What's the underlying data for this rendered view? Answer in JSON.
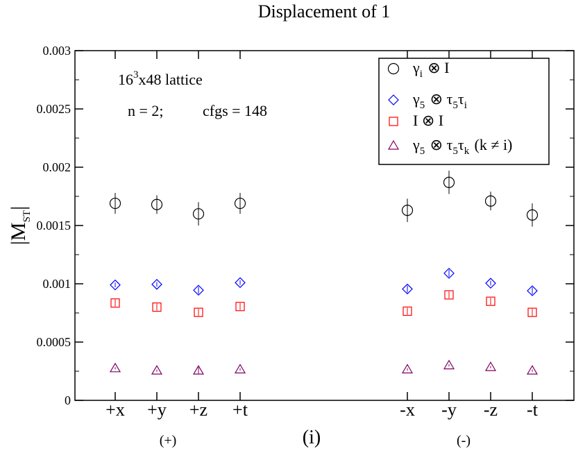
{
  "chart_data": {
    "type": "scatter",
    "title": "Displacement of 1",
    "ylabel": {
      "main": "|M",
      "sub": "ST",
      "end": "|"
    },
    "ylim": [
      0,
      0.003
    ],
    "yticks": [
      {
        "value": 0,
        "label": "0"
      },
      {
        "value": 0.0005,
        "label": "0.0005"
      },
      {
        "value": 0.001,
        "label": "0.001"
      },
      {
        "value": 0.0015,
        "label": "0.0015"
      },
      {
        "value": 0.002,
        "label": "0.002"
      },
      {
        "value": 0.0025,
        "label": "0.0025"
      },
      {
        "value": 0.003,
        "label": "0.003"
      }
    ],
    "categories": [
      "+x",
      "+y",
      "+z",
      "+t",
      "-x",
      "-y",
      "-z",
      "-t"
    ],
    "group_labels": {
      "plus": "(+)",
      "center": "(i)",
      "minus": "(-)"
    },
    "annotations": {
      "lattice": {
        "pre": "16",
        "sup": "3",
        "post": "x48 lattice"
      },
      "params": {
        "n": "n = 2;",
        "cfgs": "cfgs = 148"
      }
    },
    "series": [
      {
        "name": "γi ⊗ I",
        "marker": "circle",
        "color": "#000000",
        "values": [
          0.00169,
          0.00168,
          0.0016,
          0.00169,
          0.00163,
          0.00187,
          0.00171,
          0.00159
        ],
        "errors": [
          9e-05,
          8e-05,
          0.0001,
          9e-05,
          0.0001,
          0.0001,
          8e-05,
          0.0001
        ]
      },
      {
        "name": "γ5 ⊗ τ5τi",
        "marker": "diamond",
        "color": "#0000ff",
        "values": [
          0.00099,
          0.000995,
          0.000945,
          0.00101,
          0.000955,
          0.00109,
          0.001005,
          0.00094
        ],
        "errors": [
          2e-05,
          2e-05,
          3e-05,
          2e-05,
          3e-05,
          3e-05,
          2e-05,
          3e-05
        ]
      },
      {
        "name": "I ⊗ I",
        "marker": "square",
        "color": "#ff0000",
        "values": [
          0.000835,
          0.0008,
          0.000755,
          0.000805,
          0.000765,
          0.000905,
          0.00085,
          0.000755
        ],
        "errors": [
          3e-05,
          3e-05,
          3e-05,
          3e-05,
          3e-05,
          3e-05,
          3e-05,
          3e-05
        ]
      },
      {
        "name": "γ5 ⊗ τ5τk (k ≠ i)",
        "marker": "triangle",
        "color": "#800060",
        "values": [
          0.000275,
          0.000255,
          0.000255,
          0.000265,
          0.000265,
          0.0003,
          0.000285,
          0.000255
        ],
        "errors": [
          1e-05,
          1e-05,
          3e-05,
          1e-05,
          1e-05,
          1e-05,
          1e-05,
          1e-05
        ]
      }
    ],
    "legend": {
      "position": "top-right",
      "entries": [
        {
          "g": "γ",
          "gs": "i",
          "mid": " ⊗ I",
          "tail": ""
        },
        {
          "g": "γ",
          "gs": "5",
          "mid": " ⊗ τ",
          "ms": "5",
          "t2": "τ",
          "t2s": "i",
          "tail": ""
        },
        {
          "g": "I ⊗ I",
          "gs": "",
          "mid": "",
          "tail": ""
        },
        {
          "g": "γ",
          "gs": "5",
          "mid": " ⊗ τ",
          "ms": "5",
          "t2": "τ",
          "t2s": "k",
          "tail": "  (k ≠ i)"
        }
      ]
    },
    "grid": false
  }
}
